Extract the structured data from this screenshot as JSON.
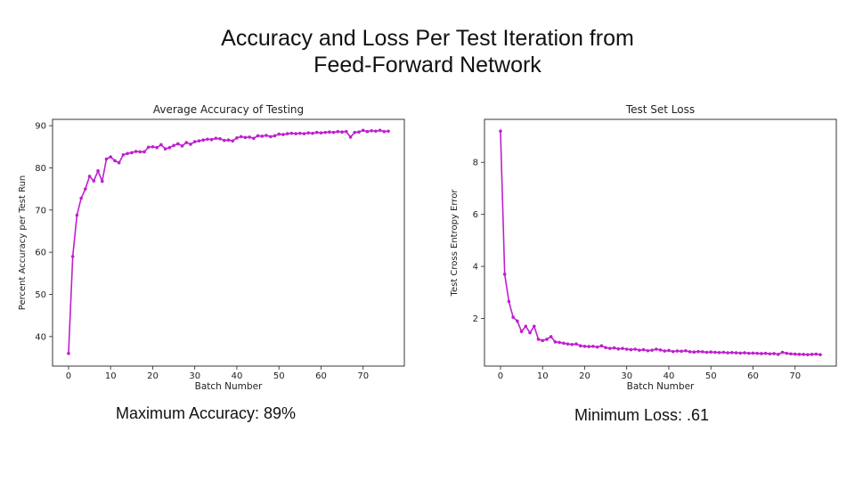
{
  "slide": {
    "title_line1": "Accuracy and Loss Per Test Iteration from",
    "title_line2": "Feed-Forward Network"
  },
  "captions": {
    "accuracy": "Maximum Accuracy: 89%",
    "loss": "Minimum Loss: .61"
  },
  "colors": {
    "series": "#bf1fcf",
    "axis": "#222222"
  },
  "chart_data": [
    {
      "type": "line",
      "title": "Average Accuracy of Testing",
      "xlabel": "Batch Number",
      "ylabel": "Percent Accuracy per Test Run",
      "xlim": [
        -3.8,
        79.8
      ],
      "ylim": [
        33,
        91.5
      ],
      "xticks": [
        0,
        10,
        20,
        30,
        40,
        50,
        60,
        70
      ],
      "yticks": [
        40,
        50,
        60,
        70,
        80,
        90
      ],
      "grid": false,
      "marker": "dot",
      "series": [
        {
          "values": [
            36,
            59,
            68.8,
            72.8,
            75,
            78,
            76.9,
            79.3,
            76.8,
            82.1,
            82.6,
            81.7,
            81.2,
            83.1,
            83.4,
            83.6,
            83.9,
            83.8,
            83.8,
            84.9,
            85,
            84.8,
            85.5,
            84.5,
            84.8,
            85.3,
            85.7,
            85.2,
            86,
            85.6,
            86.2,
            86.4,
            86.6,
            86.8,
            86.7,
            87,
            86.9,
            86.5,
            86.6,
            86.4,
            87.1,
            87.4,
            87.2,
            87.3,
            87,
            87.6,
            87.5,
            87.7,
            87.4,
            87.6,
            88,
            87.9,
            88.1,
            88.2,
            88.1,
            88.2,
            88.1,
            88.3,
            88.2,
            88.4,
            88.3,
            88.4,
            88.5,
            88.4,
            88.6,
            88.5,
            88.6,
            87.3,
            88.4,
            88.5,
            88.9,
            88.6,
            88.8,
            88.7,
            88.9,
            88.6,
            88.7
          ]
        }
      ]
    },
    {
      "type": "line",
      "title": "Test Set Loss",
      "xlabel": "Batch Number",
      "ylabel": "Test Cross Entropy Error",
      "xlim": [
        -3.8,
        79.8
      ],
      "ylim": [
        0.17,
        9.65
      ],
      "xticks": [
        0,
        10,
        20,
        30,
        40,
        50,
        60,
        70
      ],
      "yticks": [
        2,
        4,
        6,
        8
      ],
      "grid": false,
      "marker": "dot",
      "series": [
        {
          "values": [
            9.2,
            3.7,
            2.65,
            2.05,
            1.9,
            1.5,
            1.7,
            1.45,
            1.7,
            1.2,
            1.15,
            1.2,
            1.3,
            1.1,
            1.08,
            1.05,
            1.02,
            1,
            1.02,
            0.95,
            0.93,
            0.92,
            0.93,
            0.9,
            0.95,
            0.88,
            0.85,
            0.87,
            0.83,
            0.85,
            0.82,
            0.8,
            0.82,
            0.78,
            0.8,
            0.76,
            0.78,
            0.82,
            0.79,
            0.75,
            0.77,
            0.73,
            0.75,
            0.74,
            0.76,
            0.72,
            0.71,
            0.73,
            0.72,
            0.7,
            0.71,
            0.7,
            0.69,
            0.7,
            0.68,
            0.69,
            0.68,
            0.67,
            0.68,
            0.66,
            0.67,
            0.66,
            0.65,
            0.66,
            0.64,
            0.65,
            0.62,
            0.7,
            0.66,
            0.64,
            0.63,
            0.62,
            0.62,
            0.61,
            0.62,
            0.63,
            0.61
          ]
        }
      ]
    }
  ]
}
